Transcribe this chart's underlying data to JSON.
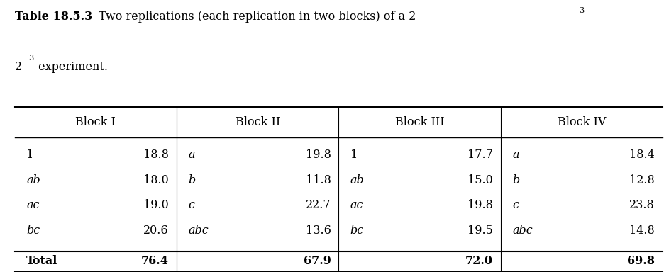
{
  "title_bold": "Table 18.5.3",
  "title_text": "Two replications (each replication in two blocks) of a 2",
  "title_super": "3",
  "title_text2": " experiment.",
  "block_headers": [
    "Block I",
    "Block II",
    "Block III",
    "Block IV"
  ],
  "rows": [
    [
      [
        "1",
        "18.8"
      ],
      [
        "a",
        "19.8"
      ],
      [
        "1",
        "17.7"
      ],
      [
        "a",
        "18.4"
      ]
    ],
    [
      [
        "ab",
        "18.0"
      ],
      [
        "b",
        "11.8"
      ],
      [
        "ab",
        "15.0"
      ],
      [
        "b",
        "12.8"
      ]
    ],
    [
      [
        "ac",
        "19.0"
      ],
      [
        "c",
        "22.7"
      ],
      [
        "ac",
        "19.8"
      ],
      [
        "c",
        "23.8"
      ]
    ],
    [
      [
        "bc",
        "20.6"
      ],
      [
        "abc",
        "13.6"
      ],
      [
        "bc",
        "19.5"
      ],
      [
        "abc",
        "14.8"
      ]
    ]
  ],
  "totals": [
    "Total",
    "76.4",
    "67.9",
    "72.0",
    "69.8"
  ],
  "upright_labels": [
    "1"
  ],
  "figsize": [
    9.36,
    3.84
  ],
  "dpi": 100
}
